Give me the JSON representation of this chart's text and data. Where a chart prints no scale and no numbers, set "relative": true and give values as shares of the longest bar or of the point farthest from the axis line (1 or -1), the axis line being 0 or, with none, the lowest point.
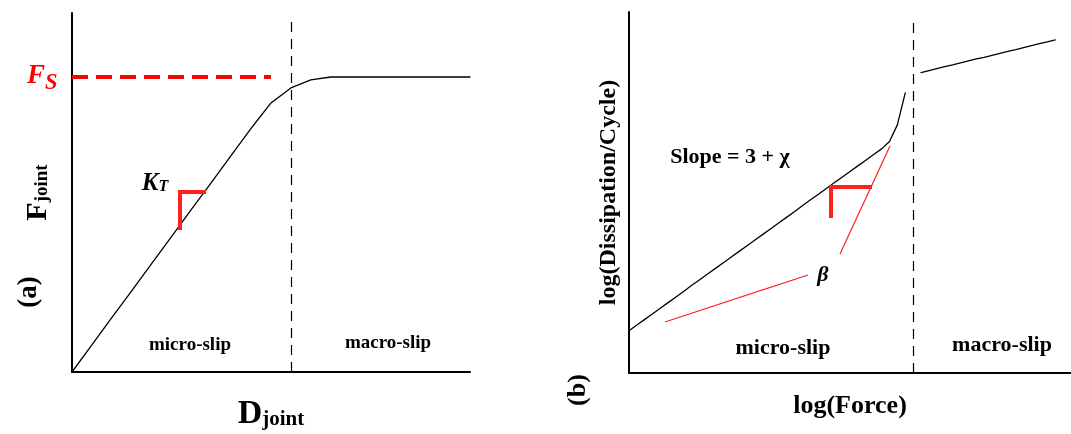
{
  "chart_data": [
    {
      "type": "line",
      "relative": true,
      "xlabel": "D$_{joint}$",
      "ylabel": "F$_{joint}$",
      "tick_labels": false,
      "grid": false,
      "marker": "none",
      "line_style": "solid",
      "categories": [
        null,
        null,
        null,
        null,
        null,
        null,
        null,
        null,
        null,
        null,
        null,
        null,
        null,
        null,
        null,
        null,
        null,
        null,
        null,
        null,
        null
      ],
      "series": [
        {
          "color": "#000000",
          "values": [
            0,
            0.092,
            0.184,
            0.275,
            0.367,
            0.459,
            0.551,
            0.642,
            0.734,
            0.826,
            0.912,
            0.963,
            0.99,
            1.0,
            1.0,
            1.0,
            1.0,
            1.0,
            1.0,
            1.0,
            1.0
          ]
        }
      ],
      "ref_lines": [
        {
          "axis": "y",
          "value": 1.0,
          "label": "F$_{S}$",
          "color": "#ff0000",
          "line_style": "dashed"
        }
      ],
      "annotations": [
        "(a)",
        "micro-slip",
        "macro-slip",
        "K$_{T}$"
      ]
    },
    {
      "type": "line",
      "relative": true,
      "xlabel": "log(Force)",
      "ylabel": "log(Dissipation/Cycle)",
      "tick_labels": false,
      "grid": false,
      "marker": "none",
      "line_style": "solid",
      "categories": [
        null,
        null,
        null,
        null,
        null,
        null,
        null,
        null,
        null,
        null,
        null,
        null,
        null,
        null,
        null,
        null,
        null,
        null,
        null,
        null,
        null,
        null,
        null,
        null,
        null,
        null,
        null,
        null,
        null,
        null,
        null,
        null,
        null,
        null,
        null,
        null,
        null,
        null,
        null,
        null,
        null,
        null,
        null,
        null,
        null,
        null,
        null,
        null,
        null,
        null,
        null,
        null,
        null,
        null,
        null,
        null,
        null
      ],
      "series": [
        {
          "color": "#000000",
          "values": [
            0.127,
            0.144,
            0.161,
            0.178,
            0.195,
            0.212,
            0.229,
            0.246,
            0.264,
            0.281,
            0.298,
            0.315,
            0.332,
            0.349,
            0.366,
            0.383,
            0.4,
            0.417,
            0.434,
            0.451,
            0.468,
            0.485,
            0.503,
            0.52,
            0.537,
            0.554,
            0.571,
            0.588,
            0.605,
            0.622,
            0.639,
            0.656,
            0.673,
            0.695,
            0.745,
            0.841,
            null,
            null,
            null,
            null,
            null,
            null,
            null,
            null,
            null,
            null,
            null,
            null,
            null,
            null,
            null,
            null,
            null,
            null,
            null,
            null,
            null
          ]
        },
        {
          "color": "#000000",
          "values": [
            null,
            null,
            null,
            null,
            null,
            null,
            null,
            null,
            null,
            null,
            null,
            null,
            null,
            null,
            null,
            null,
            null,
            null,
            null,
            null,
            null,
            null,
            null,
            null,
            null,
            null,
            null,
            null,
            null,
            null,
            null,
            null,
            null,
            null,
            null,
            null,
            null,
            0.902,
            0.908,
            0.914,
            0.92,
            0.925,
            0.931,
            0.937,
            0.943,
            0.948,
            0.954,
            0.96,
            0.966,
            0.971,
            0.977,
            0.983,
            0.989,
            0.994,
            1.0,
            null,
            null
          ]
        }
      ],
      "annotations": [
        "(b)",
        "micro-slip",
        "macro-slip",
        "Slope = 3 + χ",
        "β"
      ]
    }
  ]
}
